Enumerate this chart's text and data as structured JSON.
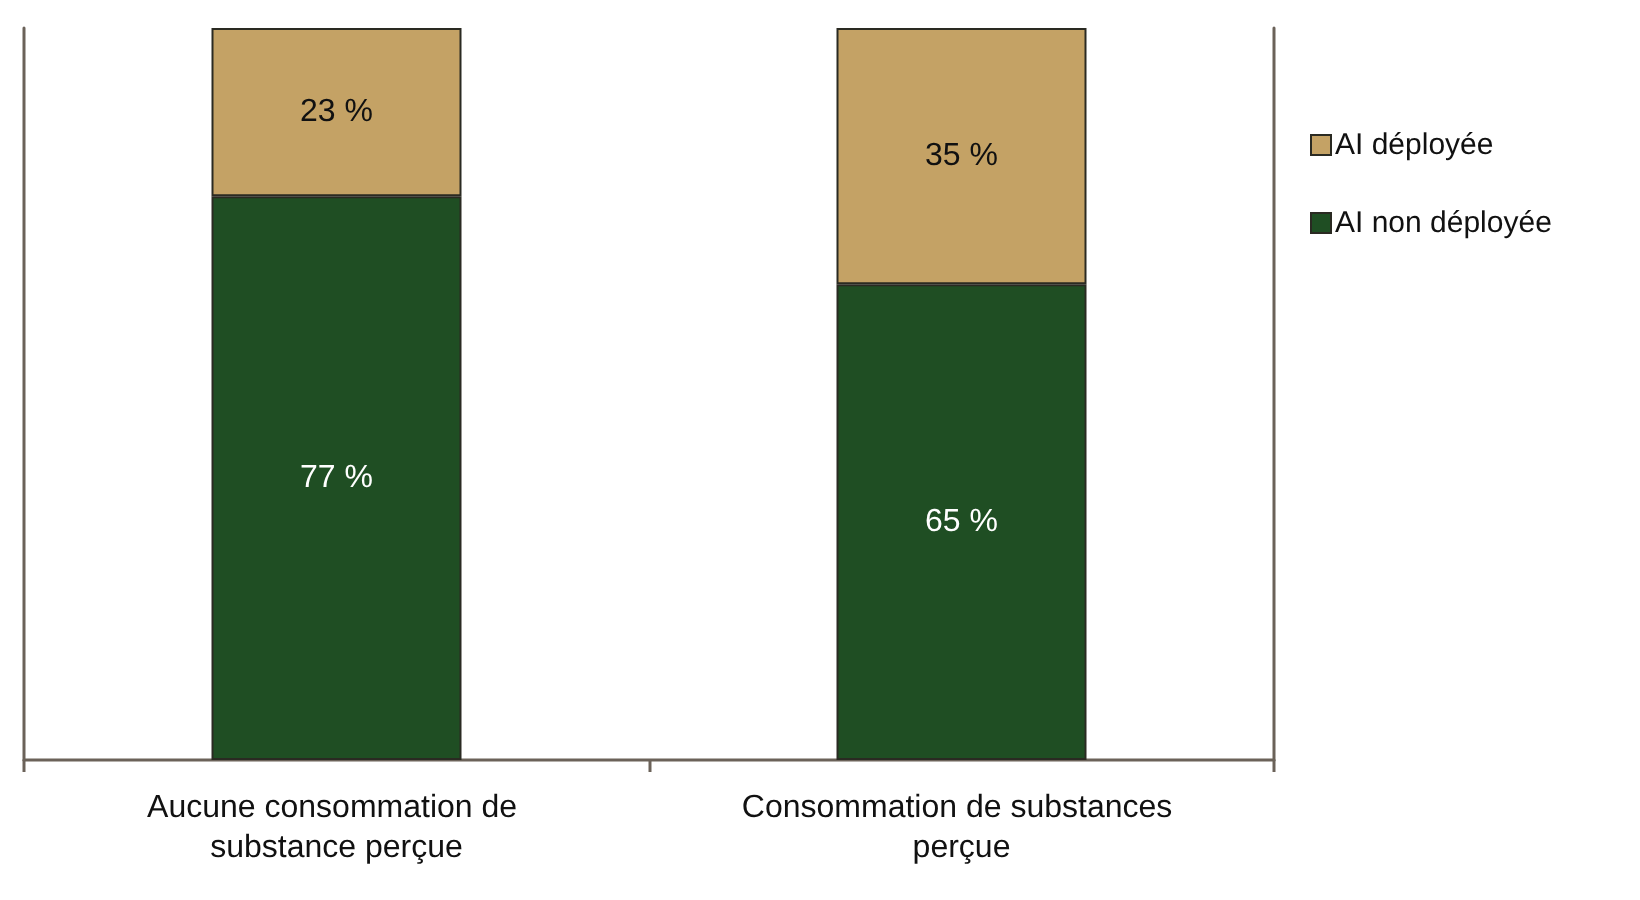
{
  "chart_data": {
    "type": "bar",
    "categories": [
      "Aucune consommation de substance perçue",
      "Consommation de substances perçue"
    ],
    "stacked": true,
    "legend": "top right",
    "tick_labels": "x",
    "series": [
      {
        "name": "AI non déployée",
        "color": "#1f4e23",
        "values": [
          77,
          65
        ],
        "value_labels": [
          "77 %",
          "65 %"
        ]
      },
      {
        "name": "AI déployée",
        "color": "#c4a265",
        "values": [
          23,
          35
        ],
        "value_labels": [
          "23 %",
          "35 %"
        ]
      }
    ]
  }
}
